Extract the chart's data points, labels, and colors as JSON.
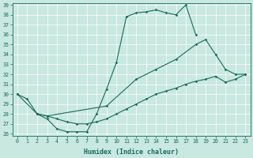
{
  "xlabel": "Humidex (Indice chaleur)",
  "bg_color": "#c8e8e0",
  "line_color": "#1a6b5a",
  "grid_color": "#ffffff",
  "ylim": [
    26,
    39
  ],
  "xlim": [
    -0.5,
    23.5
  ],
  "yticks": [
    26,
    27,
    28,
    29,
    30,
    31,
    32,
    33,
    34,
    35,
    36,
    37,
    38,
    39
  ],
  "xticks": [
    0,
    1,
    2,
    3,
    4,
    5,
    6,
    7,
    8,
    9,
    10,
    11,
    12,
    13,
    14,
    15,
    16,
    17,
    18,
    19,
    20,
    21,
    22,
    23
  ],
  "curve1_x": [
    0,
    1,
    2,
    3,
    4,
    5,
    6,
    7,
    8,
    9,
    10,
    11,
    12,
    13,
    14,
    15,
    16,
    17,
    18
  ],
  "curve1_y": [
    30.0,
    29.5,
    28.0,
    27.5,
    26.5,
    26.2,
    26.2,
    26.2,
    28.0,
    30.5,
    33.2,
    37.8,
    38.2,
    38.3,
    38.5,
    38.2,
    38.0,
    39.0,
    36.0
  ],
  "curve2_x": [
    0,
    2,
    3,
    9,
    12,
    14,
    16,
    18,
    19,
    20,
    21,
    22,
    23
  ],
  "curve2_y": [
    30.0,
    28.0,
    27.8,
    28.8,
    31.5,
    32.5,
    33.5,
    35.0,
    35.5,
    34.0,
    32.5,
    32.0,
    32.0
  ],
  "curve3_x": [
    2,
    3,
    4,
    5,
    6,
    7,
    8,
    9,
    10,
    11,
    12,
    13,
    14,
    15,
    16,
    17,
    18,
    19,
    20,
    21,
    22,
    23
  ],
  "curve3_y": [
    28.0,
    27.8,
    27.5,
    27.2,
    27.0,
    27.0,
    27.2,
    27.5,
    28.0,
    28.5,
    29.0,
    29.5,
    30.0,
    30.3,
    30.6,
    31.0,
    31.3,
    31.5,
    31.8,
    31.2,
    31.5,
    32.0
  ]
}
